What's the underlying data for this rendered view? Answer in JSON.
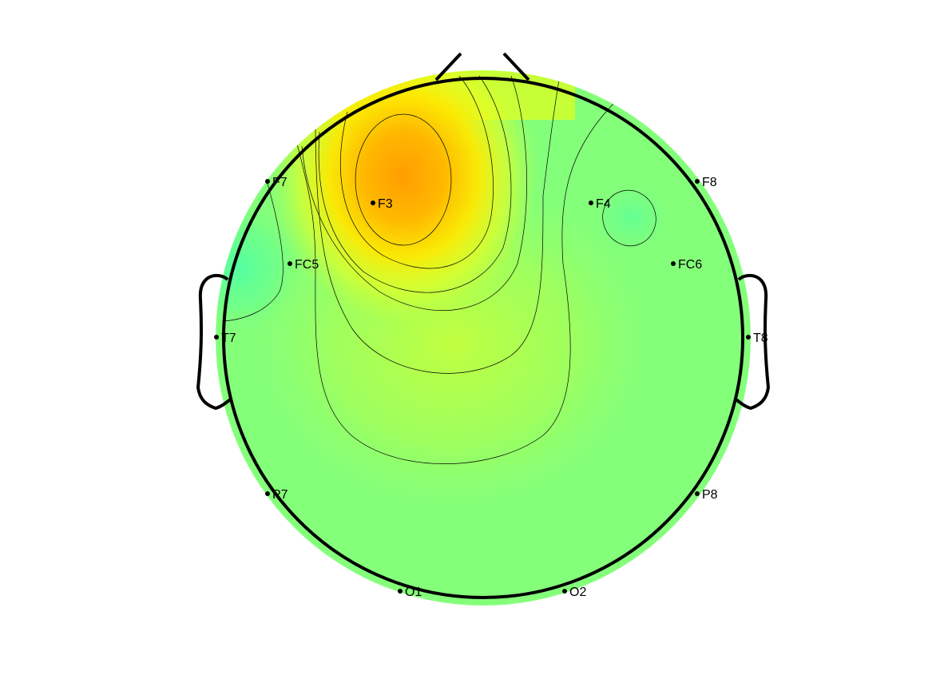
{
  "figure": {
    "type": "eeg-topographic-map",
    "colormap": "jet",
    "scale_note": "color encodes relative scalp activity (higher = warmer)",
    "colors": {
      "high": "#ff9e00",
      "mid_high": "#ffff00",
      "mid": "#c8ff3a",
      "baseline": "#84ff7a",
      "low": "#56ff9e",
      "outline": "#000000",
      "contour": "#000000"
    }
  },
  "electrodes": [
    {
      "label": "F7",
      "value": 0.5
    },
    {
      "label": "F3",
      "value": 0.92
    },
    {
      "label": "F4",
      "value": 0.44
    },
    {
      "label": "F8",
      "value": 0.5
    },
    {
      "label": "FC5",
      "value": 0.58
    },
    {
      "label": "FC6",
      "value": 0.5
    },
    {
      "label": "T7",
      "value": 0.4
    },
    {
      "label": "T8",
      "value": 0.5
    },
    {
      "label": "P7",
      "value": 0.5
    },
    {
      "label": "P8",
      "value": 0.5
    },
    {
      "label": "O1",
      "value": 0.5
    },
    {
      "label": "O2",
      "value": 0.5
    }
  ]
}
